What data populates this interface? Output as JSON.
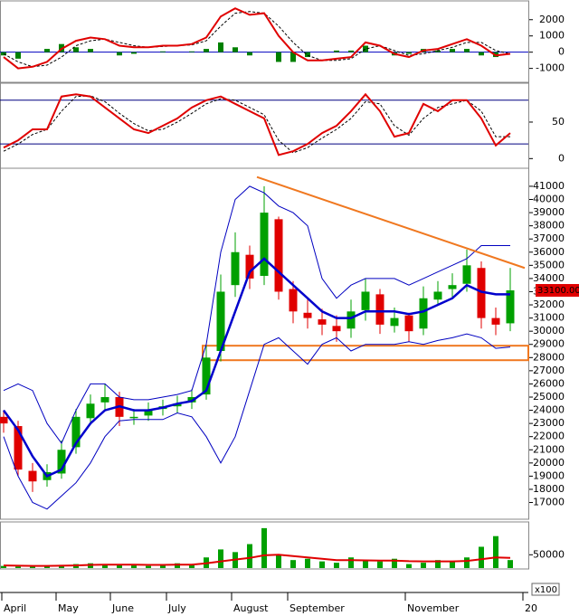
{
  "chart_data": [
    {
      "type": "macd",
      "xlim": [
        0,
        146
      ],
      "ylim": [
        -1800,
        3100
      ],
      "yticks": [
        -1000,
        0,
        1000,
        2000
      ],
      "zero_line": true,
      "zero_color": "#0000c0",
      "x": [
        1,
        5,
        9,
        13,
        17,
        21,
        25,
        29,
        33,
        37,
        41,
        45,
        49,
        53,
        57,
        61,
        65,
        69,
        73,
        77,
        81,
        85,
        89,
        93,
        97,
        101,
        105,
        109,
        113,
        117,
        121,
        125,
        129,
        133,
        137,
        141
      ],
      "series": [
        {
          "style": "histogram",
          "color": "#008000",
          "values": [
            -200,
            -400,
            0,
            200,
            500,
            300,
            200,
            0,
            -200,
            -100,
            0,
            50,
            0,
            50,
            200,
            600,
            300,
            -200,
            0,
            -600,
            -600,
            -300,
            0,
            100,
            100,
            400,
            0,
            -200,
            -100,
            200,
            100,
            200,
            200,
            -200,
            -300,
            0
          ]
        },
        {
          "style": "dashed",
          "color": "#000000",
          "values": [
            -100,
            -600,
            -900,
            -800,
            -300,
            400,
            700,
            800,
            600,
            400,
            300,
            350,
            400,
            450,
            700,
            1600,
            2400,
            2500,
            2400,
            1600,
            600,
            -200,
            -500,
            -500,
            -400,
            200,
            400,
            100,
            -200,
            -100,
            100,
            300,
            600,
            600,
            100,
            -100
          ]
        },
        {
          "style": "line",
          "color": "#e00000",
          "values": [
            -300,
            -1000,
            -900,
            -600,
            200,
            700,
            900,
            800,
            400,
            300,
            300,
            400,
            400,
            500,
            900,
            2200,
            2700,
            2300,
            2400,
            1000,
            0,
            -500,
            -500,
            -400,
            -300,
            600,
            400,
            -100,
            -300,
            100,
            200,
            500,
            800,
            400,
            -200,
            -100
          ]
        }
      ]
    },
    {
      "type": "stochastic",
      "xlim": [
        0,
        146
      ],
      "ylim": [
        -12,
        102
      ],
      "yticks": [
        0,
        50
      ],
      "hlines": [
        80,
        20
      ],
      "hline_color": "#000080",
      "x": [
        1,
        5,
        9,
        13,
        17,
        21,
        25,
        29,
        33,
        37,
        41,
        45,
        49,
        53,
        57,
        61,
        65,
        69,
        73,
        77,
        81,
        85,
        89,
        93,
        97,
        101,
        105,
        109,
        113,
        117,
        121,
        125,
        129,
        133,
        137,
        141
      ],
      "series": [
        {
          "style": "dashed",
          "color": "#000000",
          "values": [
            10,
            20,
            33,
            40,
            65,
            85,
            86,
            78,
            62,
            48,
            38,
            40,
            50,
            62,
            75,
            82,
            80,
            70,
            60,
            25,
            8,
            15,
            28,
            40,
            55,
            78,
            75,
            45,
            32,
            55,
            70,
            75,
            80,
            65,
            30,
            30
          ]
        },
        {
          "style": "line",
          "color": "#e00000",
          "values": [
            15,
            25,
            40,
            40,
            85,
            88,
            85,
            70,
            55,
            40,
            35,
            45,
            55,
            70,
            80,
            85,
            75,
            65,
            55,
            5,
            10,
            20,
            35,
            45,
            65,
            88,
            65,
            30,
            35,
            75,
            65,
            80,
            80,
            55,
            18,
            35
          ]
        }
      ]
    },
    {
      "type": "candlestick",
      "xlim": [
        0,
        146
      ],
      "ylim": [
        15800,
        42300
      ],
      "yticks": [
        17000,
        18000,
        19000,
        20000,
        21000,
        22000,
        23000,
        24000,
        25000,
        26000,
        27000,
        28000,
        29000,
        30000,
        31000,
        32000,
        33000,
        34000,
        35000,
        36000,
        37000,
        38000,
        39000,
        40000,
        41000
      ],
      "x": [
        1,
        5,
        9,
        13,
        17,
        21,
        25,
        29,
        33,
        37,
        41,
        45,
        49,
        53,
        57,
        61,
        65,
        69,
        73,
        77,
        81,
        85,
        89,
        93,
        97,
        101,
        105,
        109,
        113,
        117,
        121,
        125,
        129,
        133,
        137,
        141
      ],
      "up_color": "#00a000",
      "down_color": "#e00000",
      "open": [
        23500,
        22800,
        19400,
        18700,
        19200,
        21200,
        23400,
        24600,
        25000,
        23400,
        23600,
        24100,
        24300,
        24600,
        25200,
        28500,
        33500,
        35800,
        34200,
        38500,
        33200,
        31400,
        30900,
        30400,
        30200,
        31600,
        32800,
        30400,
        31200,
        30200,
        32400,
        33200,
        33600,
        34800,
        31000,
        30600
      ],
      "high": [
        24000,
        23200,
        20000,
        19900,
        21700,
        24100,
        25200,
        26000,
        25400,
        24100,
        24600,
        24800,
        25100,
        25600,
        28900,
        34300,
        37500,
        36500,
        41000,
        38700,
        33800,
        32400,
        31700,
        31200,
        32400,
        34000,
        33200,
        31800,
        31400,
        33400,
        33800,
        34400,
        36200,
        35300,
        31800,
        34800
      ],
      "low": [
        22300,
        19000,
        17800,
        18200,
        18800,
        20700,
        23000,
        24000,
        22800,
        22900,
        23200,
        23600,
        23800,
        24100,
        24800,
        27700,
        32600,
        33200,
        33500,
        32400,
        30600,
        30200,
        29700,
        29200,
        29500,
        30800,
        29800,
        29900,
        29200,
        29700,
        32000,
        32500,
        33000,
        30200,
        29700,
        30000
      ],
      "close": [
        23000,
        19500,
        18600,
        19300,
        21000,
        23500,
        24500,
        25000,
        23500,
        23500,
        24000,
        24300,
        24500,
        25000,
        28000,
        33000,
        36000,
        34000,
        39000,
        33000,
        31500,
        31000,
        30500,
        30000,
        31500,
        33000,
        30500,
        31000,
        30000,
        32500,
        33000,
        33500,
        35000,
        31000,
        30500,
        33100
      ],
      "series": [
        {
          "style": "line",
          "width": 1,
          "color": "#0000c0",
          "values": [
            25500,
            26000,
            25500,
            23000,
            21500,
            24000,
            26000,
            26000,
            25000,
            24800,
            24800,
            25000,
            25200,
            25500,
            29000,
            36000,
            40000,
            41000,
            40500,
            39500,
            39000,
            38000,
            34000,
            32500,
            33500,
            34000,
            34000,
            34000,
            33500,
            34000,
            34500,
            35000,
            35500,
            36500,
            36500,
            36500
          ]
        },
        {
          "style": "line",
          "width": 1,
          "color": "#0000c0",
          "values": [
            22000,
            19000,
            17000,
            16500,
            17500,
            18500,
            20000,
            22000,
            23200,
            23300,
            23300,
            23300,
            23800,
            23500,
            22000,
            20000,
            22000,
            25500,
            29000,
            29500,
            28500,
            27500,
            29000,
            29500,
            28500,
            29000,
            29000,
            29000,
            29200,
            29000,
            29300,
            29500,
            29800,
            29500,
            28700,
            28800
          ]
        },
        {
          "style": "line",
          "width": 2.5,
          "color": "#0000cc",
          "values": [
            24000,
            22500,
            20500,
            19000,
            19500,
            21500,
            23000,
            24000,
            24300,
            24000,
            24000,
            24200,
            24500,
            24700,
            25500,
            28500,
            31500,
            34500,
            35500,
            34500,
            33500,
            32500,
            31500,
            31000,
            31000,
            31500,
            31500,
            31500,
            31300,
            31500,
            32000,
            32500,
            33500,
            33000,
            32800,
            32800
          ]
        }
      ],
      "trendline": {
        "x": [
          71,
          145
        ],
        "y": [
          41700,
          34800
        ],
        "color": "#f07820"
      },
      "zone": {
        "x": [
          56,
          146
        ],
        "y": [
          27800,
          28900
        ],
        "color": "#f07820"
      },
      "last_price": {
        "value": 33100,
        "label": "33100.00"
      }
    },
    {
      "type": "volume",
      "xlim": [
        0,
        146
      ],
      "ylim": [
        0,
        170000
      ],
      "yticks": [
        50000
      ],
      "unit_label": "x100",
      "x": [
        1,
        5,
        9,
        13,
        17,
        21,
        25,
        29,
        33,
        37,
        41,
        45,
        49,
        53,
        57,
        61,
        65,
        69,
        73,
        77,
        81,
        85,
        89,
        93,
        97,
        101,
        105,
        109,
        113,
        117,
        121,
        125,
        129,
        133,
        137,
        141
      ],
      "xticks": [
        {
          "value": 0.5,
          "label": "April"
        },
        {
          "value": 15.5,
          "label": "May"
        },
        {
          "value": 30.5,
          "label": "June"
        },
        {
          "value": 46,
          "label": "July"
        },
        {
          "value": 64,
          "label": "August"
        },
        {
          "value": 79.5,
          "label": "September"
        },
        {
          "value": 112,
          "label": "November"
        },
        {
          "value": 144.5,
          "label": "20"
        }
      ],
      "series": [
        {
          "style": "bars",
          "color": "#00a000",
          "values": [
            8000,
            6000,
            5000,
            10000,
            12000,
            15000,
            18000,
            14000,
            12000,
            10000,
            8000,
            9000,
            18000,
            12000,
            40000,
            70000,
            60000,
            90000,
            150000,
            50000,
            30000,
            35000,
            25000,
            20000,
            40000,
            30000,
            25000,
            35000,
            15000,
            20000,
            30000,
            25000,
            40000,
            80000,
            120000,
            30000
          ]
        },
        {
          "style": "line",
          "width": 2,
          "color": "#e00000",
          "values": [
            10000,
            9000,
            8000,
            8000,
            9000,
            10000,
            12000,
            13000,
            13000,
            13000,
            12000,
            12000,
            13000,
            13000,
            18000,
            25000,
            32000,
            38000,
            48000,
            50000,
            45000,
            40000,
            35000,
            30000,
            30000,
            29000,
            28000,
            28000,
            26000,
            25000,
            25000,
            25000,
            27000,
            33000,
            40000,
            38000
          ]
        }
      ]
    }
  ]
}
